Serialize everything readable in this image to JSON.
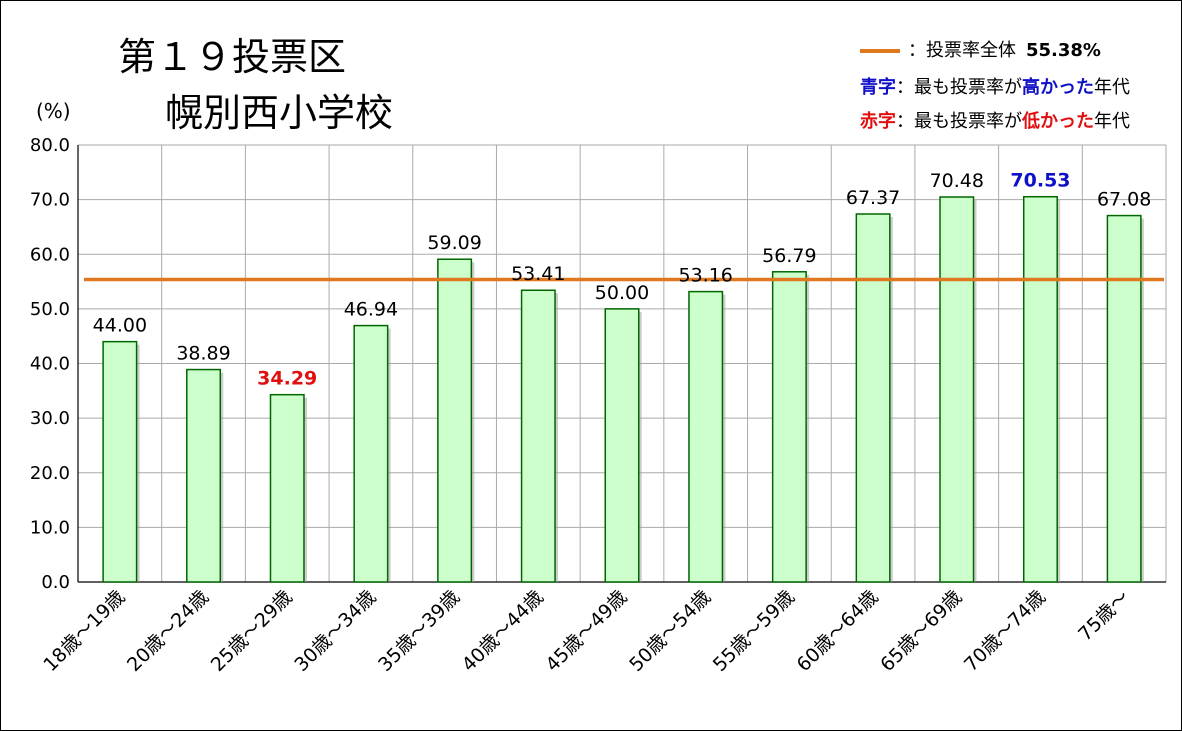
{
  "chart_data": {
    "type": "bar",
    "title_line1": "第１９投票区",
    "title_line2": "幌別西小学校",
    "ylabel": "(%)",
    "categories": [
      "18歳～19歳",
      "20歳～24歳",
      "25歳～29歳",
      "30歳～34歳",
      "35歳～39歳",
      "40歳～44歳",
      "45歳～49歳",
      "50歳～54歳",
      "55歳～59歳",
      "60歳～64歳",
      "65歳～69歳",
      "70歳～74歳",
      "75歳～"
    ],
    "values": [
      44.0,
      38.89,
      34.29,
      46.94,
      59.09,
      53.41,
      50.0,
      53.16,
      56.79,
      67.37,
      70.48,
      70.53,
      67.08
    ],
    "value_labels": [
      "44.00",
      "38.89",
      "34.29",
      "46.94",
      "59.09",
      "53.41",
      "50.00",
      "53.16",
      "56.79",
      "67.37",
      "70.48",
      "70.53",
      "67.08"
    ],
    "highest_index": 11,
    "lowest_index": 2,
    "reference_line": {
      "label": "投票率全体",
      "value": 55.38,
      "value_text": "55.38%"
    },
    "ylim": [
      0,
      80
    ],
    "yticks": [
      "0.0",
      "10.0",
      "20.0",
      "30.0",
      "40.0",
      "50.0",
      "60.0",
      "70.0",
      "80.0"
    ],
    "grid": true,
    "legend_position": "top-right",
    "colors": {
      "bar_fill": "#CCFFCC",
      "bar_stroke": "#006600",
      "reference_line": "#E07820",
      "highest_label": "#1010C8",
      "lowest_label": "#E01010",
      "grid": "#AAAAAA"
    }
  },
  "legend": {
    "line_prefix": "：",
    "line_text": "投票率全体",
    "line_value": "55.38%",
    "blue_key": "青字",
    "blue_sep": "：",
    "blue_pre": "最も投票率が",
    "blue_em": "高かった",
    "blue_post": "年代",
    "red_key": "赤字",
    "red_sep": "：",
    "red_pre": "最も投票率が",
    "red_em": "低かった",
    "red_post": "年代"
  }
}
